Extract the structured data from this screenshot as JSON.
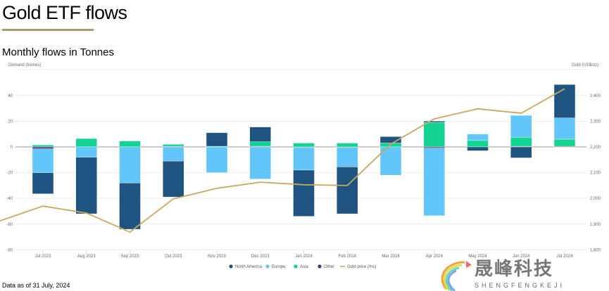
{
  "header": {
    "title": "Gold ETF flows",
    "subtitle": "Monthly flows in Tonnes"
  },
  "footnote": "Data as of 31 July, 2024",
  "watermark": {
    "cn": "晟峰科技",
    "en": "SHENGFENGKEJI"
  },
  "chart_data": {
    "type": "bar",
    "stacked": true,
    "title": "Monthly flows in Tonnes",
    "ylabel": "Demand (tonnes)",
    "y2label": "Gold (US$/oz)",
    "ylim": [
      -80,
      60
    ],
    "y2lim": [
      1800,
      2500
    ],
    "yticks": [
      "40",
      "20",
      "0",
      "-20",
      "-40",
      "-60",
      "-80"
    ],
    "y2ticks": [
      "2,400",
      "2,300",
      "2,200",
      "2,100",
      "2,000",
      "1,900",
      "1,800"
    ],
    "categories": [
      "Jul 2023",
      "Aug 2023",
      "Sep 2023",
      "Oct 2023",
      "Nov 2023",
      "Dec 2023",
      "Jan 2024",
      "Feb 2024",
      "Mar 2024",
      "Apr 2024",
      "May 2024",
      "Jun 2024",
      "Jul 2024"
    ],
    "series": [
      {
        "name": "North America",
        "color": "#1f5480",
        "values": [
          -16.5,
          -44,
          -36,
          -28,
          10.5,
          11.5,
          -36,
          -36.5,
          5,
          1,
          -3,
          -8.5,
          26
        ]
      },
      {
        "name": "Europe",
        "color": "#62c6fb",
        "values": [
          -18.5,
          -8,
          -28,
          -11,
          -20,
          -25,
          -17.5,
          -15,
          -22,
          -52.5,
          5,
          17,
          16.5
        ]
      },
      {
        "name": "Asia",
        "color": "#13d391",
        "values": [
          1.5,
          6.5,
          4.5,
          1.5,
          0.5,
          3.5,
          3,
          3,
          3,
          19,
          5,
          7,
          5.5
        ]
      },
      {
        "name": "Other",
        "color": "#5b2c83",
        "values": [
          -1.5,
          0,
          0,
          0.5,
          0,
          0.5,
          -0.5,
          -0.5,
          0,
          -1,
          0,
          0.5,
          0.5
        ]
      }
    ],
    "line": {
      "name": "Gold price (rhs)",
      "color": "#c9a85c",
      "prior_value": 1912,
      "values": [
        1970,
        1943,
        1869,
        1998,
        2039,
        2063,
        2053,
        2050,
        2211,
        2309,
        2348,
        2331,
        2426
      ]
    },
    "grid": true,
    "legend_position": "bottom"
  }
}
